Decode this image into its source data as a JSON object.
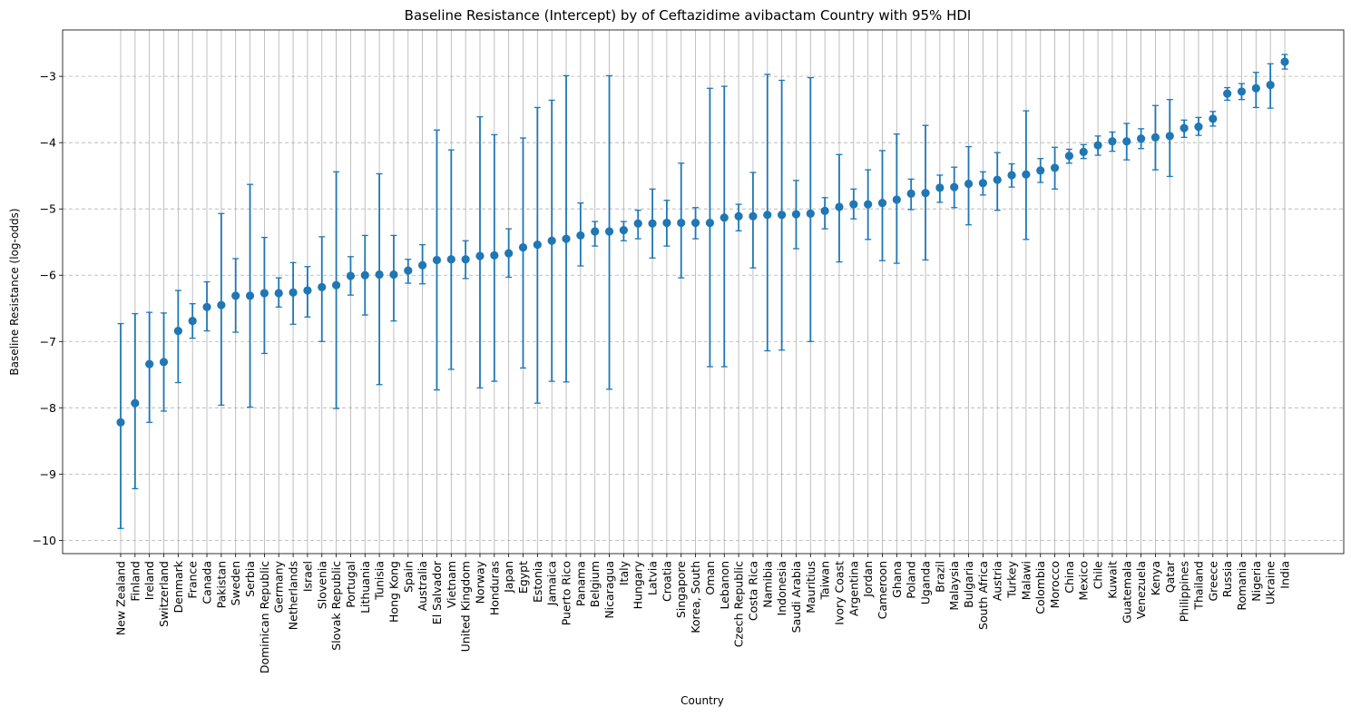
{
  "chart_data": {
    "type": "scatter",
    "subtype": "point-with-error-bars",
    "title": "Baseline Resistance (Intercept) by of Ceftazidime avibactam Country with 95% HDI",
    "xlabel": "Country",
    "ylabel": "Baseline Resistance (log-odds)",
    "ylim": [
      -10.2,
      -2.3
    ],
    "yticks": [
      -10,
      -9,
      -8,
      -7,
      -6,
      -5,
      -4,
      -3
    ],
    "ytick_labels": [
      "−10",
      "−9",
      "−8",
      "−7",
      "−6",
      "−5",
      "−4",
      "−3"
    ],
    "grid": {
      "x": true,
      "y": true,
      "y_style": "dashed"
    },
    "color": "#1f77b4",
    "points": [
      {
        "country": "New Zealand",
        "mean": -8.22,
        "low": -9.82,
        "high": -6.73
      },
      {
        "country": "Finland",
        "mean": -7.93,
        "low": -9.22,
        "high": -6.58
      },
      {
        "country": "Ireland",
        "mean": -7.34,
        "low": -8.22,
        "high": -6.56
      },
      {
        "country": "Switzerland",
        "mean": -7.31,
        "low": -8.05,
        "high": -6.57
      },
      {
        "country": "Denmark",
        "mean": -6.84,
        "low": -7.62,
        "high": -6.23
      },
      {
        "country": "France",
        "mean": -6.69,
        "low": -6.95,
        "high": -6.43
      },
      {
        "country": "Canada",
        "mean": -6.48,
        "low": -6.84,
        "high": -6.1
      },
      {
        "country": "Pakistan",
        "mean": -6.45,
        "low": -7.96,
        "high": -5.07
      },
      {
        "country": "Sweden",
        "mean": -6.31,
        "low": -6.86,
        "high": -5.75
      },
      {
        "country": "Serbia",
        "mean": -6.31,
        "low": -7.99,
        "high": -4.63
      },
      {
        "country": "Dominican Republic",
        "mean": -6.27,
        "low": -7.18,
        "high": -5.43
      },
      {
        "country": "Germany",
        "mean": -6.27,
        "low": -6.48,
        "high": -6.04
      },
      {
        "country": "Netherlands",
        "mean": -6.26,
        "low": -6.74,
        "high": -5.81
      },
      {
        "country": "Israel",
        "mean": -6.23,
        "low": -6.63,
        "high": -5.87
      },
      {
        "country": "Slovenia",
        "mean": -6.18,
        "low": -7.0,
        "high": -5.42
      },
      {
        "country": "Slovak Republic",
        "mean": -6.15,
        "low": -8.01,
        "high": -4.44
      },
      {
        "country": "Portugal",
        "mean": -6.01,
        "low": -6.3,
        "high": -5.72
      },
      {
        "country": "Lithuania",
        "mean": -6.0,
        "low": -6.6,
        "high": -5.4
      },
      {
        "country": "Tunisia",
        "mean": -5.99,
        "low": -7.65,
        "high": -4.47
      },
      {
        "country": "Hong Kong",
        "mean": -5.99,
        "low": -6.69,
        "high": -5.4
      },
      {
        "country": "Spain",
        "mean": -5.93,
        "low": -6.12,
        "high": -5.76
      },
      {
        "country": "Australia",
        "mean": -5.85,
        "low": -6.13,
        "high": -5.54
      },
      {
        "country": "El Salvador",
        "mean": -5.77,
        "low": -7.73,
        "high": -3.81
      },
      {
        "country": "Vietnam",
        "mean": -5.76,
        "low": -7.42,
        "high": -4.11
      },
      {
        "country": "United Kingdom",
        "mean": -5.76,
        "low": -6.05,
        "high": -5.48
      },
      {
        "country": "Norway",
        "mean": -5.71,
        "low": -7.7,
        "high": -3.61
      },
      {
        "country": "Honduras",
        "mean": -5.7,
        "low": -7.6,
        "high": -3.88
      },
      {
        "country": "Japan",
        "mean": -5.67,
        "low": -6.03,
        "high": -5.3
      },
      {
        "country": "Egypt",
        "mean": -5.58,
        "low": -7.4,
        "high": -3.93
      },
      {
        "country": "Estonia",
        "mean": -5.54,
        "low": -7.93,
        "high": -3.47
      },
      {
        "country": "Jamaica",
        "mean": -5.48,
        "low": -7.6,
        "high": -3.36
      },
      {
        "country": "Puerto Rico",
        "mean": -5.45,
        "low": -7.61,
        "high": -2.99
      },
      {
        "country": "Panama",
        "mean": -5.4,
        "low": -5.86,
        "high": -4.91
      },
      {
        "country": "Belgium",
        "mean": -5.34,
        "low": -5.56,
        "high": -5.19
      },
      {
        "country": "Nicaragua",
        "mean": -5.34,
        "low": -7.72,
        "high": -2.99
      },
      {
        "country": "Italy",
        "mean": -5.32,
        "low": -5.48,
        "high": -5.19
      },
      {
        "country": "Hungary",
        "mean": -5.22,
        "low": -5.45,
        "high": -5.02
      },
      {
        "country": "Latvia",
        "mean": -5.22,
        "low": -5.74,
        "high": -4.7
      },
      {
        "country": "Croatia",
        "mean": -5.21,
        "low": -5.56,
        "high": -4.87
      },
      {
        "country": "Singapore",
        "mean": -5.21,
        "low": -6.04,
        "high": -4.31
      },
      {
        "country": "Korea, South",
        "mean": -5.21,
        "low": -5.45,
        "high": -4.98
      },
      {
        "country": "Oman",
        "mean": -5.21,
        "low": -7.38,
        "high": -3.18
      },
      {
        "country": "Lebanon",
        "mean": -5.13,
        "low": -7.38,
        "high": -3.15
      },
      {
        "country": "Czech Republic",
        "mean": -5.11,
        "low": -5.33,
        "high": -4.93
      },
      {
        "country": "Costa Rica",
        "mean": -5.11,
        "low": -5.89,
        "high": -4.45
      },
      {
        "country": "Namibia",
        "mean": -5.09,
        "low": -7.14,
        "high": -2.97
      },
      {
        "country": "Indonesia",
        "mean": -5.09,
        "low": -7.13,
        "high": -3.06
      },
      {
        "country": "Saudi Arabia",
        "mean": -5.08,
        "low": -5.6,
        "high": -4.57
      },
      {
        "country": "Mauritius",
        "mean": -5.07,
        "low": -7.0,
        "high": -3.02
      },
      {
        "country": "Taiwan",
        "mean": -5.03,
        "low": -5.3,
        "high": -4.83
      },
      {
        "country": "Ivory Coast",
        "mean": -4.97,
        "low": -5.8,
        "high": -4.18
      },
      {
        "country": "Argentina",
        "mean": -4.93,
        "low": -5.15,
        "high": -4.7
      },
      {
        "country": "Jordan",
        "mean": -4.93,
        "low": -5.46,
        "high": -4.41
      },
      {
        "country": "Cameroon",
        "mean": -4.91,
        "low": -5.78,
        "high": -4.12
      },
      {
        "country": "Ghana",
        "mean": -4.86,
        "low": -5.82,
        "high": -3.87
      },
      {
        "country": "Poland",
        "mean": -4.77,
        "low": -5.01,
        "high": -4.55
      },
      {
        "country": "Uganda",
        "mean": -4.76,
        "low": -5.77,
        "high": -3.74
      },
      {
        "country": "Brazil",
        "mean": -4.68,
        "low": -4.9,
        "high": -4.49
      },
      {
        "country": "Malaysia",
        "mean": -4.67,
        "low": -4.98,
        "high": -4.37
      },
      {
        "country": "Bulgaria",
        "mean": -4.62,
        "low": -5.24,
        "high": -4.06
      },
      {
        "country": "South Africa",
        "mean": -4.61,
        "low": -4.79,
        "high": -4.44
      },
      {
        "country": "Austria",
        "mean": -4.56,
        "low": -5.02,
        "high": -4.15
      },
      {
        "country": "Turkey",
        "mean": -4.49,
        "low": -4.67,
        "high": -4.32
      },
      {
        "country": "Malawi",
        "mean": -4.48,
        "low": -5.46,
        "high": -3.52
      },
      {
        "country": "Colombia",
        "mean": -4.42,
        "low": -4.6,
        "high": -4.24
      },
      {
        "country": "Morocco",
        "mean": -4.38,
        "low": -4.7,
        "high": -4.07
      },
      {
        "country": "China",
        "mean": -4.2,
        "low": -4.31,
        "high": -4.1
      },
      {
        "country": "Mexico",
        "mean": -4.14,
        "low": -4.24,
        "high": -4.03
      },
      {
        "country": "Chile",
        "mean": -4.04,
        "low": -4.19,
        "high": -3.9
      },
      {
        "country": "Kuwait",
        "mean": -3.98,
        "low": -4.13,
        "high": -3.84
      },
      {
        "country": "Guatemala",
        "mean": -3.98,
        "low": -4.26,
        "high": -3.71
      },
      {
        "country": "Venezuela",
        "mean": -3.94,
        "low": -4.09,
        "high": -3.79
      },
      {
        "country": "Kenya",
        "mean": -3.92,
        "low": -4.41,
        "high": -3.44
      },
      {
        "country": "Qatar",
        "mean": -3.9,
        "low": -4.51,
        "high": -3.35
      },
      {
        "country": "Philippines",
        "mean": -3.78,
        "low": -3.92,
        "high": -3.66
      },
      {
        "country": "Thailand",
        "mean": -3.76,
        "low": -3.89,
        "high": -3.62
      },
      {
        "country": "Greece",
        "mean": -3.64,
        "low": -3.75,
        "high": -3.53
      },
      {
        "country": "Russia",
        "mean": -3.26,
        "low": -3.36,
        "high": -3.17
      },
      {
        "country": "Romania",
        "mean": -3.23,
        "low": -3.35,
        "high": -3.11
      },
      {
        "country": "Nigeria",
        "mean": -3.18,
        "low": -3.47,
        "high": -2.94
      },
      {
        "country": "Ukraine",
        "mean": -3.13,
        "low": -3.48,
        "high": -2.81
      },
      {
        "country": "India",
        "mean": -2.78,
        "low": -2.89,
        "high": -2.67
      }
    ]
  }
}
